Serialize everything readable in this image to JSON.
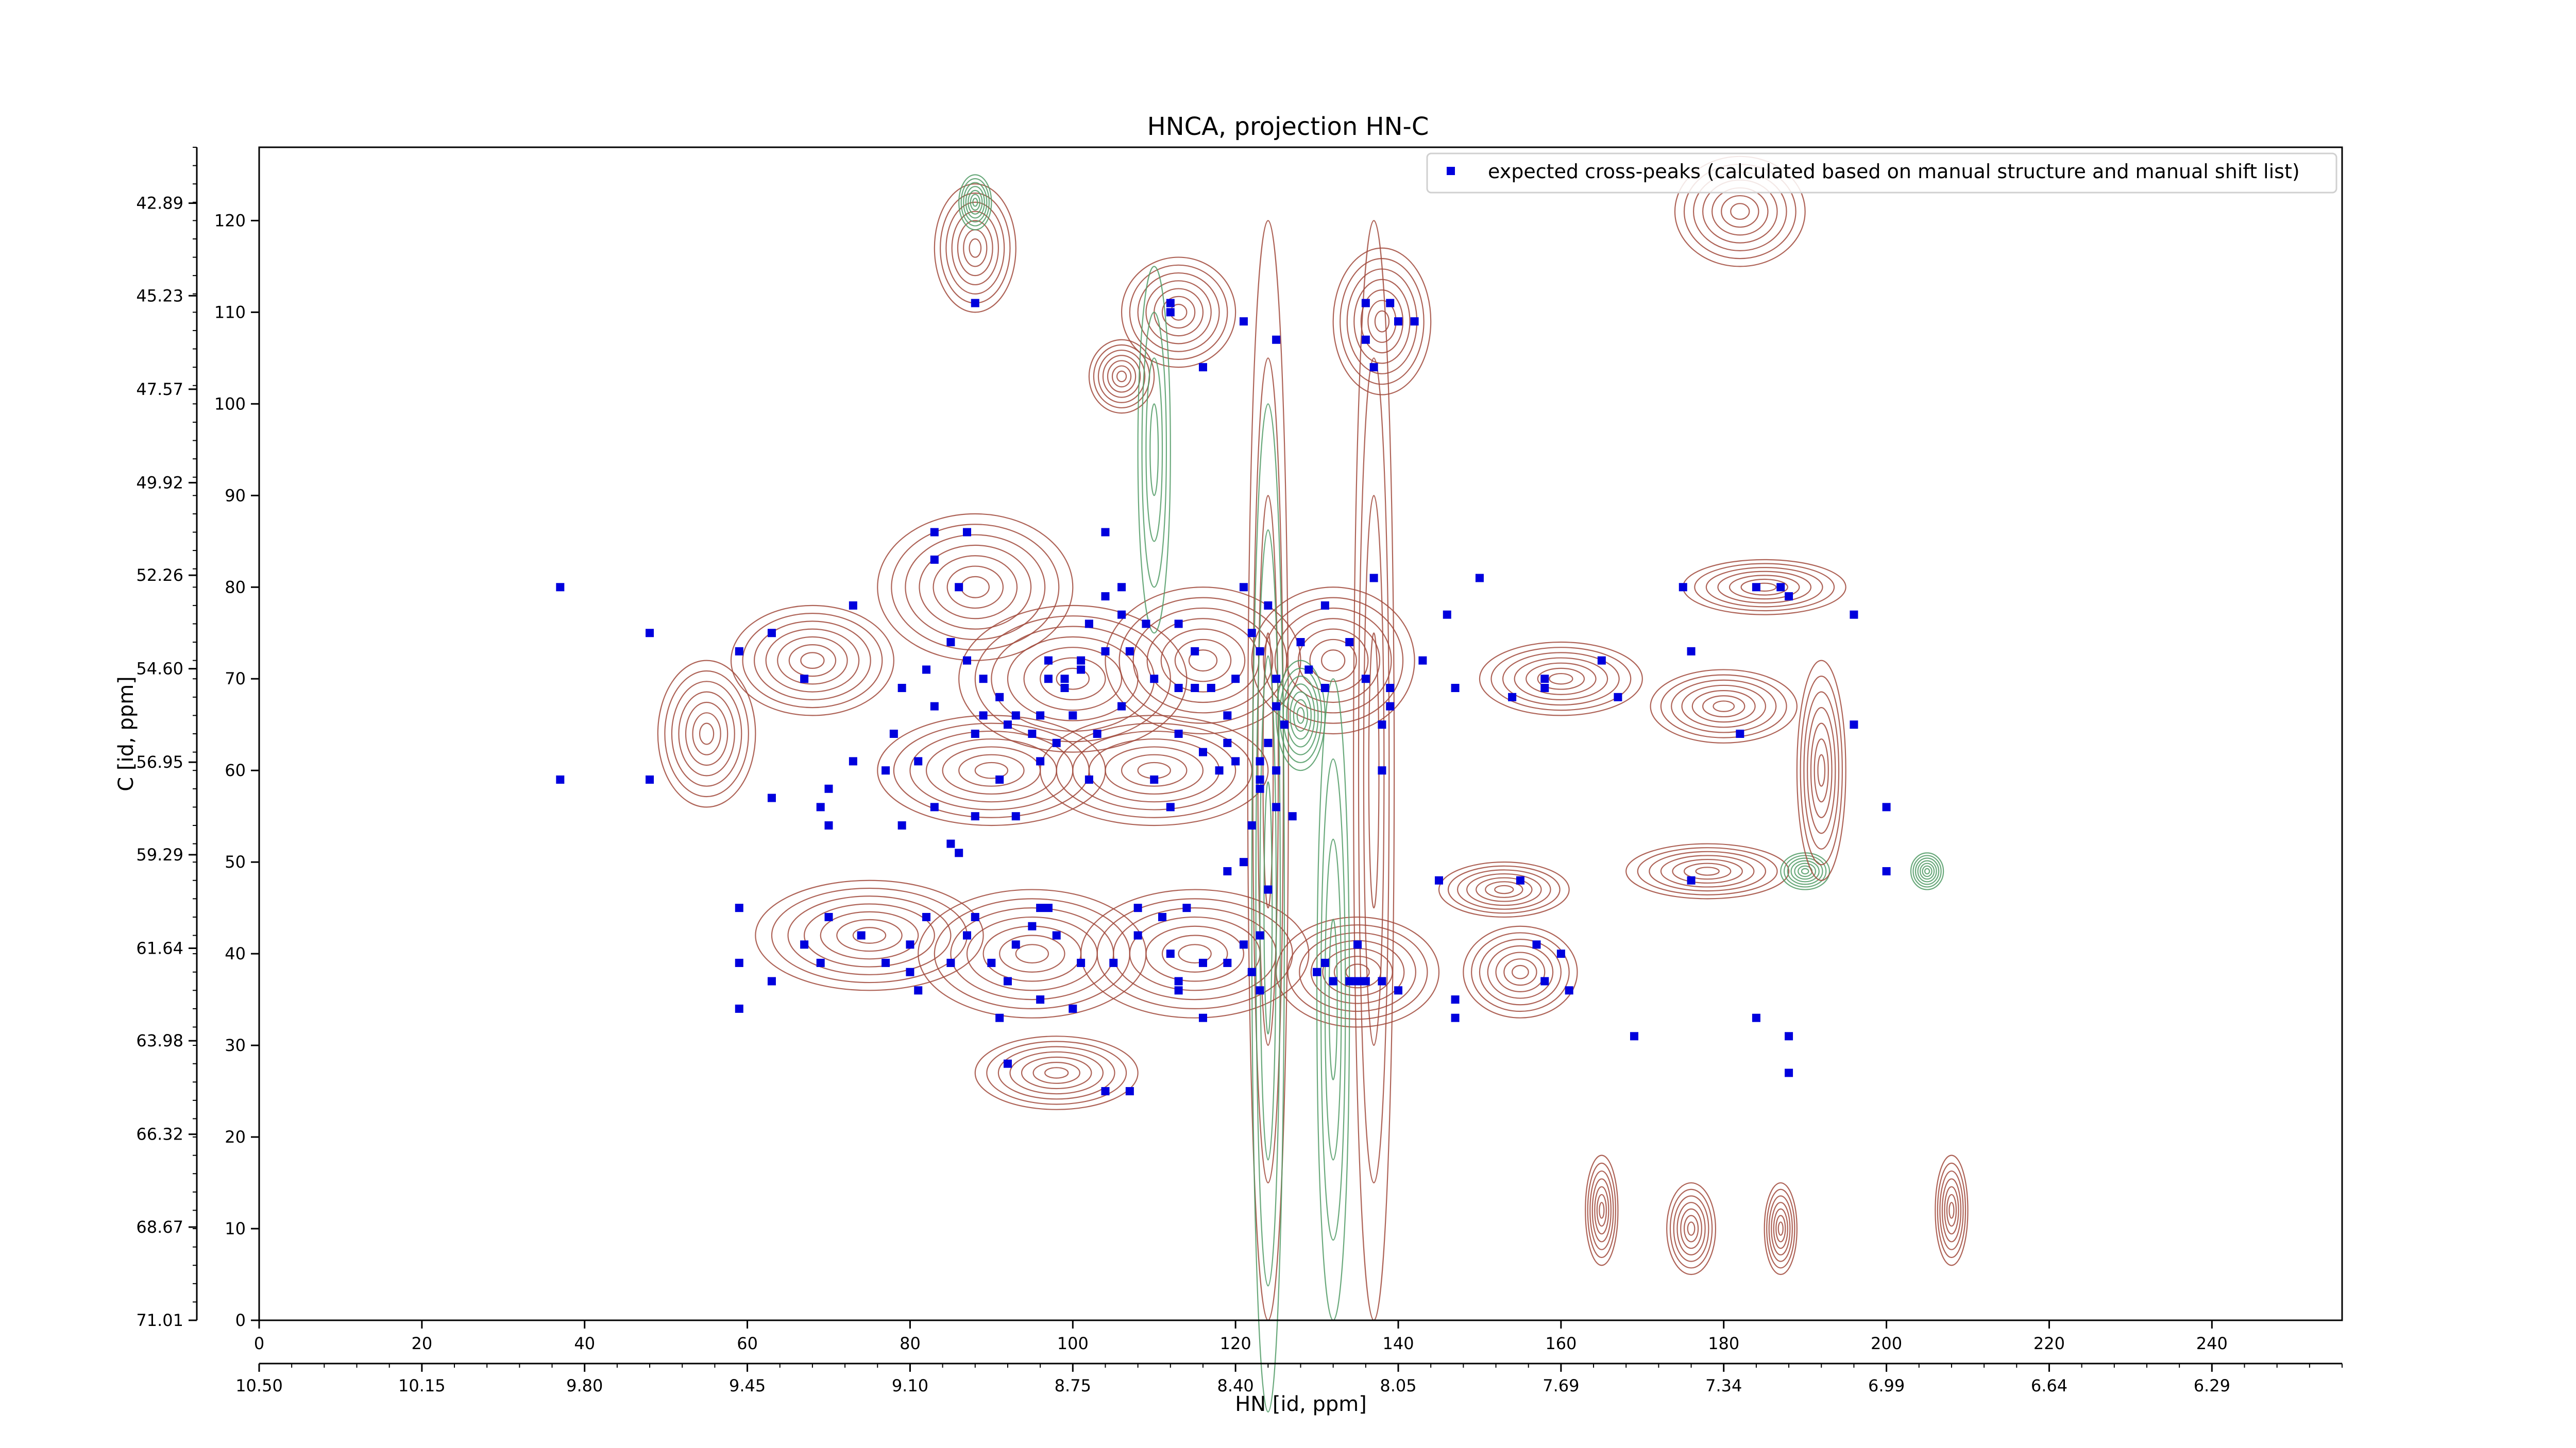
{
  "chart_data": {
    "type": "scatter",
    "title": "HNCA, projection HN-C",
    "xlabel": "HN [id, ppm]",
    "ylabel": "C [id, ppm]",
    "xlim": [
      0,
      256
    ],
    "ylim": [
      0,
      128
    ],
    "x_ticks": [
      0,
      20,
      40,
      60,
      80,
      100,
      120,
      140,
      160,
      180,
      200,
      220,
      240
    ],
    "y_ticks": [
      0,
      10,
      20,
      30,
      40,
      50,
      60,
      70,
      80,
      90,
      100,
      110,
      120
    ],
    "x_ppm_tick_labels": [
      "10.50",
      "10.15",
      "9.80",
      "9.45",
      "9.10",
      "8.75",
      "8.40",
      "8.05",
      "7.69",
      "7.34",
      "6.99",
      "6.64",
      "6.29"
    ],
    "x_ppm_tick_positions": [
      0,
      20,
      40,
      60,
      80,
      100,
      120,
      140,
      160,
      180,
      200,
      220,
      240
    ],
    "y_ppm_tick_labels": [
      "71.01",
      "68.67",
      "66.32",
      "63.98",
      "61.64",
      "59.29",
      "56.95",
      "54.60",
      "52.26",
      "49.92",
      "47.57",
      "45.23",
      "42.89"
    ],
    "y_ppm_tick_positions": [
      0,
      10.17,
      20.3,
      30.5,
      40.6,
      50.8,
      60.9,
      71.1,
      81.3,
      91.4,
      101.6,
      111.8,
      121.9
    ],
    "grid": false,
    "legend": {
      "position": "top-right",
      "entries": [
        "expected cross-peaks (calculated based on manual structure and manual shift list)"
      ]
    },
    "colors": {
      "positive_contour": "#a0483a",
      "negative_contour": "#4f9a64",
      "peak_marker": "#0000dd"
    },
    "series": [
      {
        "name": "expected cross-peaks (calculated based on manual structure and manual shift list)",
        "points": [
          [
            88,
            111
          ],
          [
            112,
            111
          ],
          [
            112,
            110
          ],
          [
            121,
            109
          ],
          [
            125,
            107
          ],
          [
            116,
            104
          ],
          [
            136,
            111
          ],
          [
            139,
            111
          ],
          [
            140,
            109
          ],
          [
            136,
            107
          ],
          [
            137,
            104
          ],
          [
            142,
            109
          ],
          [
            37,
            80
          ],
          [
            48,
            75
          ],
          [
            59,
            73
          ],
          [
            63,
            75
          ],
          [
            67,
            70
          ],
          [
            73,
            78
          ],
          [
            83,
            86
          ],
          [
            87,
            86
          ],
          [
            83,
            83
          ],
          [
            86,
            80
          ],
          [
            79,
            69
          ],
          [
            82,
            71
          ],
          [
            83,
            67
          ],
          [
            85,
            74
          ],
          [
            87,
            72
          ],
          [
            89,
            70
          ],
          [
            91,
            68
          ],
          [
            89,
            66
          ],
          [
            92,
            65
          ],
          [
            95,
            64
          ],
          [
            96,
            66
          ],
          [
            97,
            70
          ],
          [
            97,
            72
          ],
          [
            99,
            70
          ],
          [
            99,
            69
          ],
          [
            100,
            66
          ],
          [
            101,
            71
          ],
          [
            101,
            72
          ],
          [
            102,
            76
          ],
          [
            104,
            73
          ],
          [
            104,
            79
          ],
          [
            104,
            86
          ],
          [
            106,
            80
          ],
          [
            106,
            77
          ],
          [
            107,
            73
          ],
          [
            109,
            76
          ],
          [
            110,
            70
          ],
          [
            113,
            76
          ],
          [
            113,
            69
          ],
          [
            113,
            64
          ],
          [
            115,
            69
          ],
          [
            115,
            73
          ],
          [
            117,
            69
          ],
          [
            119,
            66
          ],
          [
            120,
            70
          ],
          [
            121,
            80
          ],
          [
            122,
            75
          ],
          [
            124,
            78
          ],
          [
            125,
            70
          ],
          [
            125,
            67
          ],
          [
            123,
            73
          ],
          [
            123,
            61
          ],
          [
            119,
            63
          ],
          [
            120,
            61
          ],
          [
            124,
            63
          ],
          [
            125,
            60
          ],
          [
            126,
            65
          ],
          [
            128,
            74
          ],
          [
            129,
            71
          ],
          [
            131,
            78
          ],
          [
            131,
            69
          ],
          [
            134,
            74
          ],
          [
            136,
            70
          ],
          [
            137,
            81
          ],
          [
            139,
            69
          ],
          [
            138,
            65
          ],
          [
            138,
            60
          ],
          [
            139,
            67
          ],
          [
            143,
            72
          ],
          [
            146,
            77
          ],
          [
            147,
            69
          ],
          [
            150,
            81
          ],
          [
            37,
            59
          ],
          [
            48,
            59
          ],
          [
            63,
            57
          ],
          [
            69,
            56
          ],
          [
            70,
            54
          ],
          [
            70,
            58
          ],
          [
            73,
            61
          ],
          [
            77,
            60
          ],
          [
            78,
            64
          ],
          [
            79,
            54
          ],
          [
            81,
            61
          ],
          [
            83,
            56
          ],
          [
            85,
            52
          ],
          [
            86,
            51
          ],
          [
            88,
            55
          ],
          [
            88,
            64
          ],
          [
            93,
            66
          ],
          [
            91,
            59
          ],
          [
            93,
            55
          ],
          [
            96,
            61
          ],
          [
            98,
            63
          ],
          [
            102,
            59
          ],
          [
            103,
            64
          ],
          [
            106,
            67
          ],
          [
            110,
            59
          ],
          [
            112,
            56
          ],
          [
            116,
            62
          ],
          [
            118,
            60
          ],
          [
            122,
            54
          ],
          [
            123,
            58
          ],
          [
            125,
            56
          ],
          [
            127,
            55
          ],
          [
            123,
            59
          ],
          [
            119,
            49
          ],
          [
            121,
            50
          ],
          [
            154,
            68
          ],
          [
            158,
            70
          ],
          [
            158,
            69
          ],
          [
            165,
            72
          ],
          [
            167,
            68
          ],
          [
            175,
            80
          ],
          [
            176,
            73
          ],
          [
            182,
            64
          ],
          [
            184,
            80
          ],
          [
            187,
            80
          ],
          [
            188,
            79
          ],
          [
            196,
            77
          ],
          [
            196,
            65
          ],
          [
            200,
            56
          ],
          [
            200,
            49
          ],
          [
            59,
            45
          ],
          [
            59,
            39
          ],
          [
            59,
            34
          ],
          [
            63,
            37
          ],
          [
            67,
            41
          ],
          [
            69,
            39
          ],
          [
            70,
            44
          ],
          [
            74,
            42
          ],
          [
            77,
            39
          ],
          [
            80,
            41
          ],
          [
            80,
            38
          ],
          [
            82,
            44
          ],
          [
            81,
            36
          ],
          [
            85,
            39
          ],
          [
            87,
            42
          ],
          [
            88,
            44
          ],
          [
            90,
            39
          ],
          [
            91,
            33
          ],
          [
            92,
            37
          ],
          [
            93,
            41
          ],
          [
            95,
            43
          ],
          [
            96,
            45
          ],
          [
            97,
            45
          ],
          [
            96,
            35
          ],
          [
            98,
            42
          ],
          [
            100,
            34
          ],
          [
            101,
            39
          ],
          [
            105,
            39
          ],
          [
            108,
            42
          ],
          [
            108,
            45
          ],
          [
            111,
            44
          ],
          [
            112,
            40
          ],
          [
            113,
            37
          ],
          [
            113,
            36
          ],
          [
            114,
            45
          ],
          [
            116,
            39
          ],
          [
            116,
            33
          ],
          [
            119,
            39
          ],
          [
            123,
            36
          ],
          [
            121,
            41
          ],
          [
            122,
            38
          ],
          [
            123,
            42
          ],
          [
            124,
            47
          ],
          [
            130,
            38
          ],
          [
            131,
            39
          ],
          [
            132,
            37
          ],
          [
            135,
            37
          ],
          [
            135,
            41
          ],
          [
            136,
            37
          ],
          [
            134,
            37
          ],
          [
            138,
            37
          ],
          [
            140,
            36
          ],
          [
            145,
            48
          ],
          [
            147,
            35
          ],
          [
            147,
            33
          ],
          [
            155,
            48
          ],
          [
            157,
            41
          ],
          [
            158,
            37
          ],
          [
            161,
            36
          ],
          [
            160,
            40
          ],
          [
            169,
            31
          ],
          [
            176,
            48
          ],
          [
            184,
            33
          ],
          [
            188,
            31
          ],
          [
            188,
            27
          ],
          [
            104,
            25
          ],
          [
            107,
            25
          ],
          [
            92,
            28
          ]
        ]
      }
    ],
    "contours": [
      {
        "sign": "positive",
        "type": "peak",
        "x": 88,
        "y": 117,
        "rx": 5,
        "ry": 7
      },
      {
        "sign": "positive",
        "type": "peak",
        "x": 106,
        "y": 103,
        "rx": 4,
        "ry": 4
      },
      {
        "sign": "positive",
        "type": "peak",
        "x": 113,
        "y": 110,
        "rx": 7,
        "ry": 6
      },
      {
        "sign": "positive",
        "type": "peak",
        "x": 138,
        "y": 109,
        "rx": 6,
        "ry": 8
      },
      {
        "sign": "positive",
        "type": "peak",
        "x": 182,
        "y": 121,
        "rx": 8,
        "ry": 6
      },
      {
        "sign": "positive",
        "type": "region",
        "x": 55,
        "y": 64,
        "rx": 6,
        "ry": 8
      },
      {
        "sign": "positive",
        "type": "region",
        "x": 68,
        "y": 72,
        "rx": 10,
        "ry": 6
      },
      {
        "sign": "positive",
        "type": "region",
        "x": 88,
        "y": 80,
        "rx": 12,
        "ry": 8
      },
      {
        "sign": "positive",
        "type": "region",
        "x": 100,
        "y": 70,
        "rx": 14,
        "ry": 8
      },
      {
        "sign": "positive",
        "type": "region",
        "x": 116,
        "y": 72,
        "rx": 12,
        "ry": 8
      },
      {
        "sign": "positive",
        "type": "region",
        "x": 132,
        "y": 72,
        "rx": 10,
        "ry": 8
      },
      {
        "sign": "positive",
        "type": "region",
        "x": 90,
        "y": 60,
        "rx": 14,
        "ry": 6
      },
      {
        "sign": "positive",
        "type": "region",
        "x": 110,
        "y": 60,
        "rx": 14,
        "ry": 6
      },
      {
        "sign": "positive",
        "type": "region",
        "x": 75,
        "y": 42,
        "rx": 14,
        "ry": 6
      },
      {
        "sign": "positive",
        "type": "region",
        "x": 95,
        "y": 40,
        "rx": 14,
        "ry": 7
      },
      {
        "sign": "positive",
        "type": "region",
        "x": 115,
        "y": 40,
        "rx": 14,
        "ry": 7
      },
      {
        "sign": "positive",
        "type": "region",
        "x": 135,
        "y": 38,
        "rx": 10,
        "ry": 6
      },
      {
        "sign": "positive",
        "type": "region",
        "x": 98,
        "y": 27,
        "rx": 10,
        "ry": 4
      },
      {
        "sign": "positive",
        "type": "region",
        "x": 160,
        "y": 70,
        "rx": 10,
        "ry": 4
      },
      {
        "sign": "positive",
        "type": "region",
        "x": 180,
        "y": 67,
        "rx": 9,
        "ry": 4
      },
      {
        "sign": "positive",
        "type": "region",
        "x": 185,
        "y": 80,
        "rx": 10,
        "ry": 3
      },
      {
        "sign": "positive",
        "type": "region",
        "x": 178,
        "y": 49,
        "rx": 10,
        "ry": 3
      },
      {
        "sign": "positive",
        "type": "region",
        "x": 153,
        "y": 47,
        "rx": 8,
        "ry": 3
      },
      {
        "sign": "positive",
        "type": "region",
        "x": 155,
        "y": 38,
        "rx": 7,
        "ry": 5
      },
      {
        "sign": "positive",
        "type": "streak",
        "x": 124,
        "y": 60,
        "rx": 2.5,
        "ry": 60
      },
      {
        "sign": "positive",
        "type": "streak",
        "x": 137,
        "y": 60,
        "rx": 2.5,
        "ry": 60
      },
      {
        "sign": "negative",
        "type": "streak",
        "x": 124,
        "y": 45,
        "rx": 2,
        "ry": 55
      },
      {
        "sign": "negative",
        "type": "streak",
        "x": 110,
        "y": 95,
        "rx": 2,
        "ry": 20
      },
      {
        "sign": "negative",
        "type": "streak",
        "x": 132,
        "y": 35,
        "rx": 2,
        "ry": 35
      },
      {
        "sign": "negative",
        "type": "peak",
        "x": 88,
        "y": 122,
        "rx": 2,
        "ry": 3
      },
      {
        "sign": "negative",
        "type": "peak",
        "x": 128,
        "y": 66,
        "rx": 3,
        "ry": 6
      },
      {
        "sign": "negative",
        "type": "peak",
        "x": 190,
        "y": 49,
        "rx": 3,
        "ry": 2
      },
      {
        "sign": "negative",
        "type": "peak",
        "x": 205,
        "y": 49,
        "rx": 2,
        "ry": 2
      },
      {
        "sign": "positive",
        "type": "peak",
        "x": 165,
        "y": 12,
        "rx": 2,
        "ry": 6
      },
      {
        "sign": "positive",
        "type": "peak",
        "x": 176,
        "y": 10,
        "rx": 3,
        "ry": 5
      },
      {
        "sign": "positive",
        "type": "peak",
        "x": 187,
        "y": 10,
        "rx": 2,
        "ry": 5
      },
      {
        "sign": "positive",
        "type": "peak",
        "x": 208,
        "y": 12,
        "rx": 2,
        "ry": 6
      },
      {
        "sign": "positive",
        "type": "peak",
        "x": 192,
        "y": 60,
        "rx": 3,
        "ry": 12
      }
    ]
  }
}
